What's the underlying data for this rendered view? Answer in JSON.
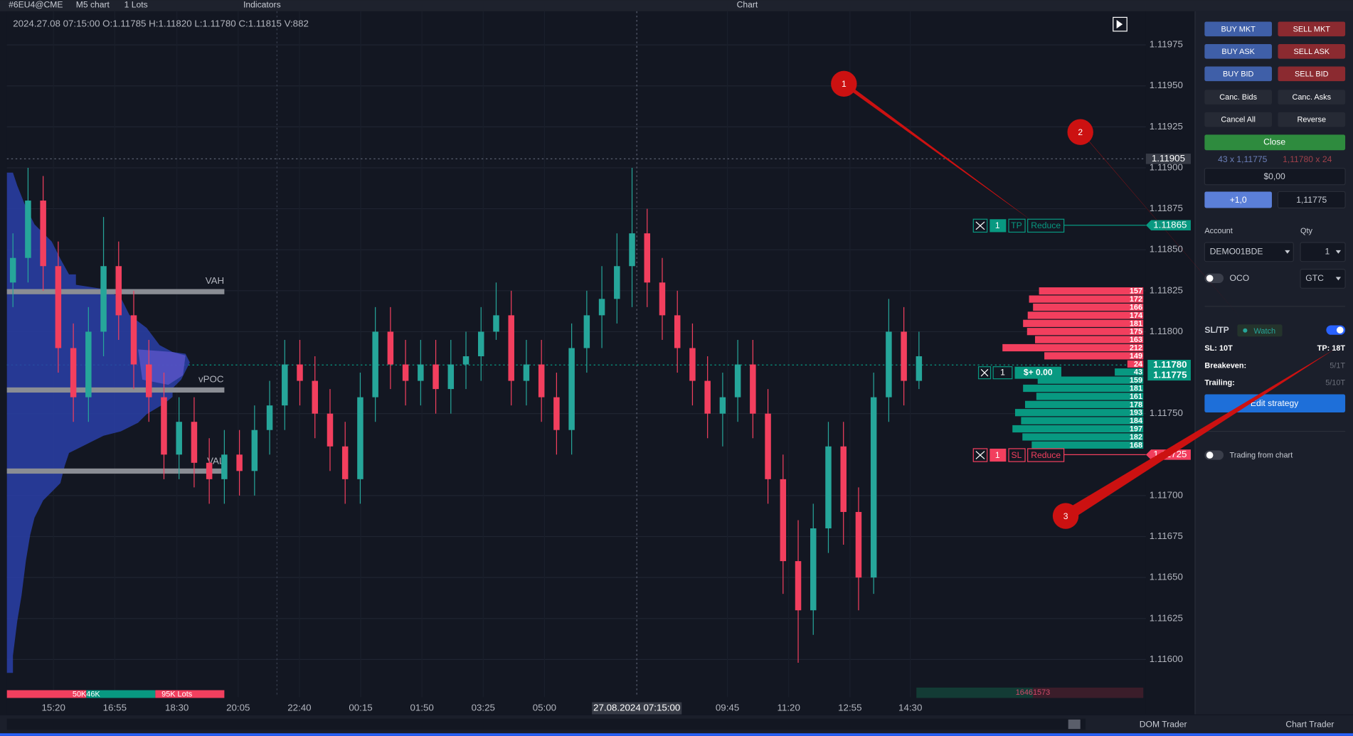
{
  "toolbar": {
    "symbol": "#6EU4@CME",
    "timeframe": "M5 chart",
    "lots": "1 Lots",
    "indicators": "Indicators",
    "window_title": "Chart"
  },
  "chart_data": {
    "type": "candlestick",
    "info": "2024.27.08 07:15:00 O:1.11785 H:1.11820 L:1.11780 C:1.11815 V:882",
    "open": [
      1.1183,
      1.11845,
      1.1188,
      1.1184,
      1.1179,
      1.1176,
      1.118,
      1.1184,
      1.1181,
      1.1178,
      1.1176,
      1.11725,
      1.11745,
      1.1172,
      1.1171,
      1.11725,
      1.11715,
      1.1174,
      1.11755,
      1.1178,
      1.1177,
      1.1175,
      1.1173,
      1.1171,
      1.1176,
      1.118,
      1.1178,
      1.1177,
      1.1178,
      1.11765,
      1.1178,
      1.11785,
      1.118,
      1.1181,
      1.1177,
      1.1178,
      1.1176,
      1.1174,
      1.1179,
      1.1181,
      1.1182,
      1.1184,
      1.1186,
      1.1183,
      1.1181,
      1.1179,
      1.1177,
      1.1175,
      1.1176,
      1.1178,
      1.1175,
      1.1171,
      1.1166,
      1.1163,
      1.1168,
      1.1173,
      1.1169,
      1.1165,
      1.1176,
      1.118,
      1.1177
    ],
    "high": [
      1.1186,
      1.119,
      1.11895,
      1.11855,
      1.11805,
      1.11815,
      1.1187,
      1.11855,
      1.11825,
      1.11795,
      1.11775,
      1.1176,
      1.1176,
      1.11735,
      1.1174,
      1.1174,
      1.11755,
      1.1177,
      1.11795,
      1.11795,
      1.11785,
      1.11765,
      1.11745,
      1.11775,
      1.11815,
      1.11815,
      1.11795,
      1.11795,
      1.11795,
      1.11795,
      1.118,
      1.11815,
      1.1183,
      1.11825,
      1.11795,
      1.11795,
      1.11775,
      1.11805,
      1.11825,
      1.1184,
      1.1186,
      1.119,
      1.11875,
      1.11845,
      1.11825,
      1.11805,
      1.11785,
      1.11775,
      1.11795,
      1.11795,
      1.11765,
      1.11725,
      1.11685,
      1.11695,
      1.11745,
      1.11745,
      1.11705,
      1.11775,
      1.1182,
      1.11815,
      1.118
    ],
    "low": [
      1.11815,
      1.1183,
      1.11825,
      1.11775,
      1.11745,
      1.11745,
      1.11785,
      1.11795,
      1.11765,
      1.11745,
      1.1171,
      1.1171,
      1.11705,
      1.11695,
      1.11695,
      1.117,
      1.117,
      1.11725,
      1.1174,
      1.11755,
      1.11735,
      1.11715,
      1.11695,
      1.11695,
      1.11745,
      1.11765,
      1.11755,
      1.11755,
      1.1175,
      1.1175,
      1.11765,
      1.1177,
      1.11795,
      1.11755,
      1.11755,
      1.11745,
      1.11725,
      1.11725,
      1.11775,
      1.1179,
      1.11805,
      1.11815,
      1.11815,
      1.11795,
      1.11775,
      1.11755,
      1.11735,
      1.1173,
      1.11745,
      1.11735,
      1.11695,
      1.1164,
      1.11598,
      1.11615,
      1.11665,
      1.1167,
      1.1163,
      1.1164,
      1.11745,
      1.11755,
      1.11765
    ],
    "close": [
      1.11845,
      1.1188,
      1.1184,
      1.1179,
      1.1176,
      1.118,
      1.1184,
      1.1181,
      1.1178,
      1.1176,
      1.11725,
      1.11745,
      1.1172,
      1.1171,
      1.11725,
      1.11715,
      1.1174,
      1.11755,
      1.1178,
      1.1177,
      1.1175,
      1.1173,
      1.1171,
      1.1176,
      1.118,
      1.1178,
      1.1177,
      1.1178,
      1.11765,
      1.1178,
      1.11785,
      1.118,
      1.1181,
      1.1177,
      1.1178,
      1.1176,
      1.1174,
      1.1179,
      1.1181,
      1.1182,
      1.1184,
      1.1186,
      1.1183,
      1.1181,
      1.1179,
      1.1177,
      1.1175,
      1.1176,
      1.1178,
      1.1175,
      1.1171,
      1.1166,
      1.1163,
      1.1168,
      1.1173,
      1.1169,
      1.1165,
      1.1176,
      1.118,
      1.1177,
      1.11785
    ],
    "up_color": "#26a69a",
    "down_color": "#f23f5e",
    "ylim": [
      1.11576,
      1.11996
    ],
    "yticks": [
      1.11975,
      {
        "value": 1.1195,
        "label": "1.11950"
      },
      1.11925,
      {
        "value": 1.119,
        "label": "1.11900"
      },
      1.11875,
      {
        "value": 1.1185,
        "label": "1.11850"
      },
      1.11825,
      {
        "value": 1.118,
        "label": "1.11800"
      },
      {
        "value": 1.1175,
        "label": "1.11750"
      },
      {
        "value": 1.117,
        "label": "1.11700"
      },
      1.11675,
      {
        "value": 1.1165,
        "label": "1.11650"
      },
      1.11625,
      {
        "value": 1.116,
        "label": "1.11600"
      }
    ],
    "grid": true,
    "time_labels": [
      "15:20",
      "16:55",
      "18:30",
      "20:05",
      "22:40",
      "00:15",
      "01:50",
      "03:25",
      "05:00",
      "09:45",
      "11:20",
      "12:55",
      "14:30"
    ],
    "crosshair_time": "27.08.2024 07:15:00",
    "crosshair_price": "1.11905",
    "profile_labels": {
      "vah": "VAH",
      "vpoc": "vPOC",
      "val": "VAL"
    },
    "volume_labels": [
      "50K46K",
      "95K Lots"
    ],
    "volume_total": "16461573"
  },
  "orders": {
    "tp": {
      "qty": "1",
      "kind": "TP",
      "action": "Reduce",
      "price": "1.11865"
    },
    "sl": {
      "qty": "1",
      "kind": "SL",
      "action": "Reduce",
      "price": "1.11725"
    },
    "position": {
      "qty": "1",
      "pnl": "$+ 0.00"
    },
    "ask_price": "1.11780",
    "bid_price": "1.11775"
  },
  "dom": {
    "asks": [
      157,
      172,
      166,
      174,
      181,
      175,
      163,
      212,
      149,
      24
    ],
    "bids": [
      43,
      159,
      181,
      161,
      178,
      193,
      184,
      197,
      182,
      168
    ],
    "ask_color": "#f23f5e",
    "bid_color": "#089981"
  },
  "panel": {
    "buttons": [
      [
        "BUY MKT",
        "SELL MKT"
      ],
      [
        "BUY ASK",
        "SELL ASK"
      ],
      [
        "BUY BID",
        "SELL BID"
      ],
      [
        "Canc. Bids",
        "Canc. Asks"
      ],
      [
        "Cancel All",
        "Reverse"
      ]
    ],
    "close": "Close",
    "bid_info": "43 x 1,11775",
    "ask_info": "1,11780 x 24",
    "pnl": "$0,00",
    "step": "+1,0",
    "price": "1,11775",
    "account_label": "Account",
    "qty_label": "Qty",
    "account": "DEMO01BDE",
    "qty": "1",
    "oco": "OCO",
    "tif": "GTC",
    "sltp": "SL/TP",
    "watch": "Watch",
    "sl": "SL: 10T",
    "tp": "TP: 18T",
    "breakeven_label": "Breakeven:",
    "breakeven": "5/1T",
    "trailing_label": "Trailing:",
    "trailing": "5/10T",
    "edit": "Edit strategy",
    "trading_from_chart": "Trading from chart"
  },
  "annotations": [
    "1",
    "2",
    "3"
  ],
  "tabs": [
    "DOM Trader",
    "Chart Trader"
  ]
}
